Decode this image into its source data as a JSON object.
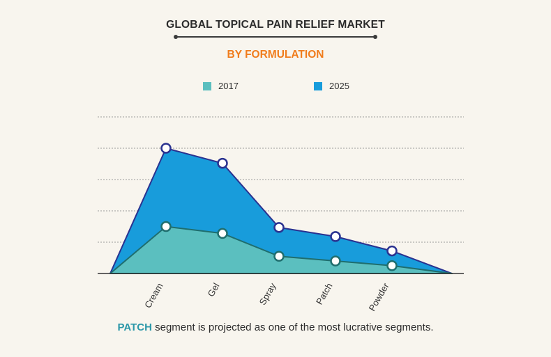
{
  "header": {
    "title": "GLOBAL TOPICAL PAIN RELIEF MARKET",
    "subtitle": "BY FORMULATION"
  },
  "footnote": {
    "highlight": "PATCH",
    "text": " segment is projected as one of the most lucrative segments."
  },
  "colors": {
    "series_2017_fill": "#5bbfbf",
    "series_2025_fill": "#189cdb",
    "series_2017_line": "#1f6e6e",
    "series_2025_line": "#2a3290",
    "subtitle": "#f07c1c",
    "highlight": "#2b97a8"
  },
  "chart_data": {
    "type": "area",
    "categories": [
      "Cream",
      "Gel",
      "Spray",
      "Patch",
      "Powder"
    ],
    "series": [
      {
        "name": "2017",
        "values": [
          15,
          12.8,
          5.5,
          4,
          2.5
        ]
      },
      {
        "name": "2025",
        "values": [
          40,
          35.2,
          14.7,
          11.8,
          7.2
        ]
      }
    ],
    "ylim": [
      0,
      50
    ],
    "grid": true,
    "legend": "top-center"
  }
}
